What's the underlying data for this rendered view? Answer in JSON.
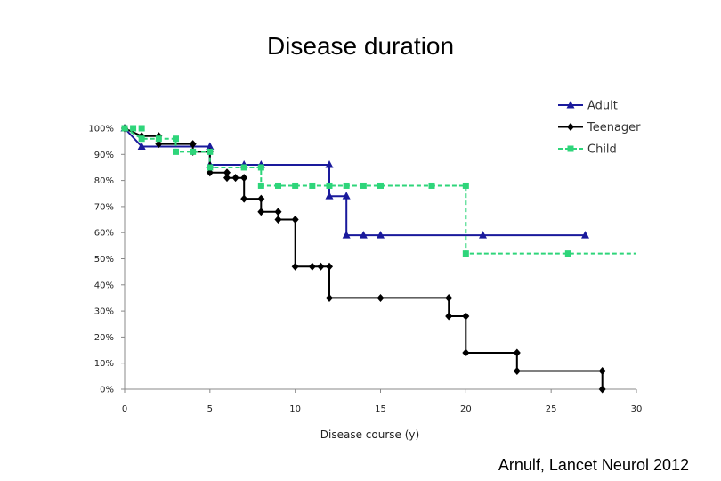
{
  "slide": {
    "title": "Disease duration",
    "citation": "Arnulf, Lancet Neurol 2012"
  },
  "chart_data": {
    "type": "line",
    "step": true,
    "title": "",
    "xlabel": "Disease course (y)",
    "ylabel": "",
    "xlim": [
      0,
      30
    ],
    "ylim": [
      0,
      100
    ],
    "x_ticks": [
      0,
      5,
      10,
      15,
      20,
      25,
      30
    ],
    "y_ticks": [
      0,
      10,
      20,
      30,
      40,
      50,
      60,
      70,
      80,
      90,
      100
    ],
    "y_tick_suffix": "%",
    "grid": false,
    "legend_position": "top-right",
    "series": [
      {
        "name": "Adult",
        "color": "#1a1a9c",
        "dash": "solid",
        "marker": "triangle",
        "points": [
          [
            0,
            100
          ],
          [
            1,
            93
          ],
          [
            5,
            93
          ],
          [
            5,
            86
          ],
          [
            7,
            86
          ],
          [
            8,
            86
          ],
          [
            12,
            86
          ],
          [
            12,
            74
          ],
          [
            13,
            74
          ],
          [
            13,
            59
          ],
          [
            14,
            59
          ],
          [
            15,
            59
          ],
          [
            21,
            59
          ],
          [
            27,
            59
          ]
        ],
        "markers": [
          [
            0,
            100
          ],
          [
            1,
            93
          ],
          [
            5,
            93
          ],
          [
            5,
            86
          ],
          [
            7,
            86
          ],
          [
            8,
            86
          ],
          [
            12,
            86
          ],
          [
            12,
            74
          ],
          [
            13,
            74
          ],
          [
            13,
            59
          ],
          [
            14,
            59
          ],
          [
            15,
            59
          ],
          [
            21,
            59
          ],
          [
            27,
            59
          ]
        ]
      },
      {
        "name": "Teenager",
        "color": "#000000",
        "dash": "solid",
        "marker": "diamond",
        "points": [
          [
            0,
            100
          ],
          [
            1,
            97
          ],
          [
            2,
            97
          ],
          [
            2,
            94
          ],
          [
            4,
            94
          ],
          [
            4,
            91
          ],
          [
            5,
            91
          ],
          [
            5,
            83
          ],
          [
            6,
            83
          ],
          [
            6,
            81
          ],
          [
            7,
            81
          ],
          [
            7,
            73
          ],
          [
            8,
            73
          ],
          [
            8,
            68
          ],
          [
            9,
            68
          ],
          [
            9,
            65
          ],
          [
            10,
            65
          ],
          [
            10,
            47
          ],
          [
            11,
            47
          ],
          [
            12,
            47
          ],
          [
            12,
            35
          ],
          [
            15,
            35
          ],
          [
            19,
            35
          ],
          [
            19,
            28
          ],
          [
            20,
            28
          ],
          [
            20,
            14
          ],
          [
            23,
            14
          ],
          [
            23,
            7
          ],
          [
            28,
            7
          ],
          [
            28,
            0
          ]
        ],
        "markers": [
          [
            0,
            100
          ],
          [
            1,
            97
          ],
          [
            2,
            97
          ],
          [
            2,
            94
          ],
          [
            4,
            94
          ],
          [
            4,
            91
          ],
          [
            5,
            91
          ],
          [
            5,
            83
          ],
          [
            6,
            83
          ],
          [
            6,
            81
          ],
          [
            6.5,
            81
          ],
          [
            7,
            81
          ],
          [
            7,
            73
          ],
          [
            8,
            73
          ],
          [
            8,
            68
          ],
          [
            9,
            68
          ],
          [
            9,
            65
          ],
          [
            10,
            65
          ],
          [
            10,
            47
          ],
          [
            11,
            47
          ],
          [
            11.5,
            47
          ],
          [
            12,
            47
          ],
          [
            12,
            35
          ],
          [
            15,
            35
          ],
          [
            19,
            35
          ],
          [
            19,
            28
          ],
          [
            20,
            28
          ],
          [
            20,
            14
          ],
          [
            23,
            14
          ],
          [
            23,
            7
          ],
          [
            28,
            7
          ],
          [
            28,
            0
          ]
        ]
      },
      {
        "name": "Child",
        "color": "#2ed57a",
        "dash": "dashed",
        "marker": "square",
        "points": [
          [
            0,
            100
          ],
          [
            1,
            96
          ],
          [
            3,
            96
          ],
          [
            3,
            91
          ],
          [
            5,
            91
          ],
          [
            5,
            85
          ],
          [
            7,
            85
          ],
          [
            8,
            85
          ],
          [
            8,
            78
          ],
          [
            9,
            78
          ],
          [
            12,
            78
          ],
          [
            20,
            78
          ],
          [
            20,
            52
          ],
          [
            26,
            52
          ],
          [
            30,
            52
          ]
        ],
        "markers": [
          [
            0,
            100
          ],
          [
            0.5,
            100
          ],
          [
            1,
            100
          ],
          [
            1,
            96
          ],
          [
            2,
            96
          ],
          [
            3,
            96
          ],
          [
            3,
            91
          ],
          [
            4,
            91
          ],
          [
            5,
            91
          ],
          [
            5,
            85
          ],
          [
            7,
            85
          ],
          [
            8,
            85
          ],
          [
            8,
            78
          ],
          [
            9,
            78
          ],
          [
            10,
            78
          ],
          [
            11,
            78
          ],
          [
            12,
            78
          ],
          [
            13,
            78
          ],
          [
            14,
            78
          ],
          [
            15,
            78
          ],
          [
            18,
            78
          ],
          [
            20,
            78
          ],
          [
            20,
            52
          ],
          [
            26,
            52
          ]
        ]
      }
    ]
  }
}
